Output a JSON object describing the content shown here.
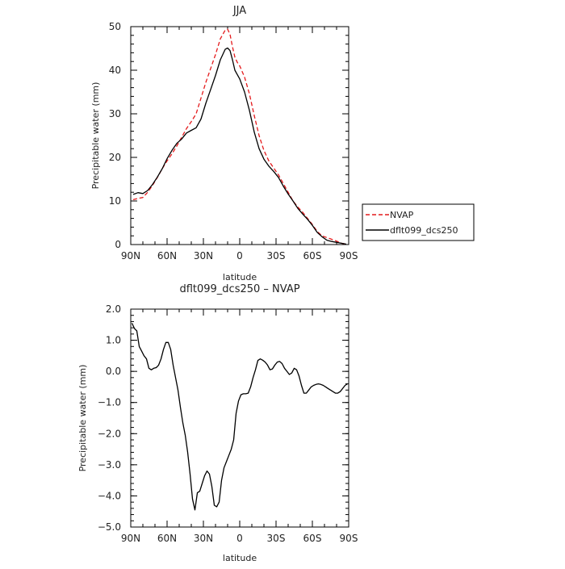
{
  "chart_data": [
    {
      "type": "line",
      "title": "JJA",
      "xlabel": "latitude",
      "ylabel": "Precipitable water  (mm)",
      "xlim": [
        90,
        -90
      ],
      "ylim": [
        0,
        50
      ],
      "xticks": [
        {
          "value": 90,
          "label": "90N"
        },
        {
          "value": 60,
          "label": "60N"
        },
        {
          "value": 30,
          "label": "30N"
        },
        {
          "value": 0,
          "label": "0"
        },
        {
          "value": -30,
          "label": "30S"
        },
        {
          "value": -60,
          "label": "60S"
        },
        {
          "value": -90,
          "label": "90S"
        }
      ],
      "yticks": [
        {
          "value": 0,
          "label": "0"
        },
        {
          "value": 10,
          "label": "10"
        },
        {
          "value": 20,
          "label": "20"
        },
        {
          "value": 30,
          "label": "30"
        },
        {
          "value": 40,
          "label": "40"
        },
        {
          "value": 50,
          "label": "50"
        }
      ],
      "legend_position": "right",
      "series": [
        {
          "name": "NVAP",
          "color": "#e41a1c",
          "dashed": true,
          "x": [
            88,
            84,
            80,
            76,
            72,
            68,
            64,
            60,
            56,
            52,
            48,
            44,
            40,
            36,
            32,
            28,
            24,
            20,
            16,
            12,
            10,
            8,
            6,
            4,
            2,
            0,
            -4,
            -8,
            -12,
            -16,
            -20,
            -24,
            -28,
            -32,
            -36,
            -40,
            -44,
            -48,
            -52,
            -56,
            -60,
            -64,
            -68,
            -72,
            -76,
            -80,
            -84,
            -88
          ],
          "y": [
            10.3,
            10.6,
            10.8,
            12,
            13.6,
            15.4,
            17.4,
            19.2,
            20.8,
            22.6,
            24.6,
            26.6,
            28.2,
            30,
            33.6,
            37.2,
            40.4,
            43.6,
            47.2,
            49.2,
            49.4,
            48.2,
            45.4,
            43,
            41.8,
            41,
            38.4,
            34.6,
            29.6,
            25,
            21.6,
            19.2,
            17.6,
            16,
            14,
            12,
            10,
            8.6,
            7.4,
            6,
            4.6,
            3,
            2,
            1.6,
            1.2,
            0.8,
            0.3,
            0.1
          ]
        },
        {
          "name": "dflt099_dcs250",
          "color": "#000000",
          "dashed": false,
          "x": [
            88,
            84,
            80,
            76,
            72,
            68,
            64,
            60,
            56,
            52,
            48,
            44,
            40,
            36,
            32,
            28,
            24,
            20,
            16,
            12,
            10,
            8,
            6,
            4,
            2,
            0,
            -4,
            -8,
            -12,
            -16,
            -20,
            -24,
            -28,
            -32,
            -36,
            -40,
            -44,
            -48,
            -52,
            -56,
            -60,
            -64,
            -68,
            -72,
            -76,
            -80,
            -84,
            -88
          ],
          "y": [
            11.5,
            11.9,
            11.7,
            12.4,
            13.8,
            15.5,
            17.4,
            19.7,
            21.6,
            23.2,
            24.2,
            25.6,
            26.2,
            26.8,
            28.8,
            32.4,
            35.6,
            38.8,
            42.4,
            44.8,
            45.1,
            44.5,
            42.4,
            40,
            39,
            38,
            35,
            30.8,
            25.8,
            22,
            19.6,
            18,
            16.8,
            15.4,
            13.4,
            11.6,
            10,
            8.3,
            7,
            5.8,
            4.4,
            2.8,
            1.8,
            1,
            0.7,
            0.5,
            0.3,
            0.1
          ]
        }
      ]
    },
    {
      "type": "line",
      "title": "dflt099_dcs250 – NVAP",
      "xlabel": "latitude",
      "ylabel": "Precipitable water  (mm)",
      "xlim": [
        90,
        -90
      ],
      "ylim": [
        -5,
        2
      ],
      "xticks": [
        {
          "value": 90,
          "label": "90N"
        },
        {
          "value": 60,
          "label": "60N"
        },
        {
          "value": 30,
          "label": "30N"
        },
        {
          "value": 0,
          "label": "0"
        },
        {
          "value": -30,
          "label": "30S"
        },
        {
          "value": -60,
          "label": "60S"
        },
        {
          "value": -90,
          "label": "90S"
        }
      ],
      "yticks": [
        {
          "value": 2,
          "label": "2.0"
        },
        {
          "value": 1,
          "label": "1.0"
        },
        {
          "value": 0,
          "label": "0.0"
        },
        {
          "value": -1,
          "label": "−1.0"
        },
        {
          "value": -2,
          "label": "−2.0"
        },
        {
          "value": -3,
          "label": "−3.0"
        },
        {
          "value": -4,
          "label": "−4.0"
        },
        {
          "value": -5,
          "label": "−5.0"
        }
      ],
      "series": [
        {
          "color": "#000000",
          "dashed": false,
          "x": [
            89,
            87,
            85,
            83,
            81,
            79,
            77,
            75,
            73,
            71,
            69,
            67,
            65,
            63,
            61,
            59,
            57,
            55,
            53,
            51,
            49,
            47,
            45,
            43,
            41,
            39,
            37,
            35,
            33,
            31,
            29,
            27,
            25,
            23,
            21,
            19,
            17,
            15,
            13,
            11,
            9,
            7,
            5,
            3,
            1,
            -1,
            -3,
            -5,
            -7,
            -9,
            -11,
            -13,
            -15,
            -17,
            -19,
            -21,
            -23,
            -25,
            -27,
            -29,
            -31,
            -33,
            -35,
            -37,
            -39,
            -41,
            -43,
            -45,
            -47,
            -49,
            -51,
            -53,
            -55,
            -57,
            -59,
            -61,
            -63,
            -65,
            -67,
            -69,
            -71,
            -73,
            -75,
            -77,
            -79,
            -81,
            -83,
            -85,
            -87,
            -89
          ],
          "y": [
            1.55,
            1.38,
            1.3,
            0.8,
            0.65,
            0.5,
            0.4,
            0.1,
            0.05,
            0.1,
            0.12,
            0.2,
            0.4,
            0.7,
            0.93,
            0.93,
            0.7,
            0.2,
            -0.2,
            -0.6,
            -1.15,
            -1.65,
            -2.05,
            -2.6,
            -3.3,
            -4.1,
            -4.45,
            -3.9,
            -3.85,
            -3.6,
            -3.35,
            -3.2,
            -3.3,
            -3.7,
            -4.3,
            -4.35,
            -4.2,
            -3.5,
            -3.1,
            -2.9,
            -2.7,
            -2.5,
            -2.2,
            -1.35,
            -0.95,
            -0.75,
            -0.72,
            -0.72,
            -0.7,
            -0.5,
            -0.2,
            0.05,
            0.35,
            0.4,
            0.36,
            0.3,
            0.2,
            0.05,
            0.08,
            0.2,
            0.3,
            0.32,
            0.25,
            0.1,
            0.0,
            -0.1,
            -0.05,
            0.1,
            0.05,
            -0.15,
            -0.45,
            -0.7,
            -0.7,
            -0.6,
            -0.5,
            -0.45,
            -0.42,
            -0.4,
            -0.42,
            -0.45,
            -0.5,
            -0.55,
            -0.6,
            -0.65,
            -0.7,
            -0.7,
            -0.65,
            -0.55,
            -0.45,
            -0.4
          ]
        }
      ]
    }
  ]
}
